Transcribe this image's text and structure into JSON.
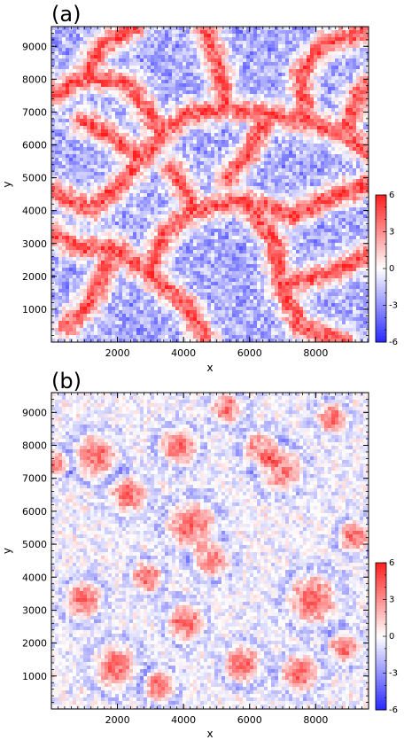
{
  "chart_data": [
    {
      "type": "heatmap",
      "panel_label": "(a)",
      "xlabel": "x",
      "ylabel": "y",
      "xlim": [
        0,
        9600
      ],
      "ylim": [
        0,
        9600
      ],
      "xticks": [
        2000,
        4000,
        6000,
        8000
      ],
      "yticks": [
        1000,
        2000,
        3000,
        4000,
        5000,
        6000,
        7000,
        8000,
        9000
      ],
      "colorbar": {
        "ticks": [
          6,
          3,
          0,
          -3,
          -6
        ],
        "range": [
          -6,
          6
        ]
      },
      "pattern": "network"
    },
    {
      "type": "heatmap",
      "panel_label": "(b)",
      "xlabel": "x",
      "ylabel": "y",
      "xlim": [
        0,
        9600
      ],
      "ylim": [
        0,
        9600
      ],
      "xticks": [
        2000,
        4000,
        6000,
        8000
      ],
      "yticks": [
        1000,
        2000,
        3000,
        4000,
        5000,
        6000,
        7000,
        8000,
        9000
      ],
      "colorbar": {
        "ticks": [
          6,
          3,
          0,
          -3,
          -6
        ],
        "range": [
          -6,
          6
        ]
      },
      "pattern": "blobs"
    }
  ],
  "colors": {
    "positive": "#ff0000",
    "neutral": "#ffffff",
    "negative": "#0000ff"
  }
}
